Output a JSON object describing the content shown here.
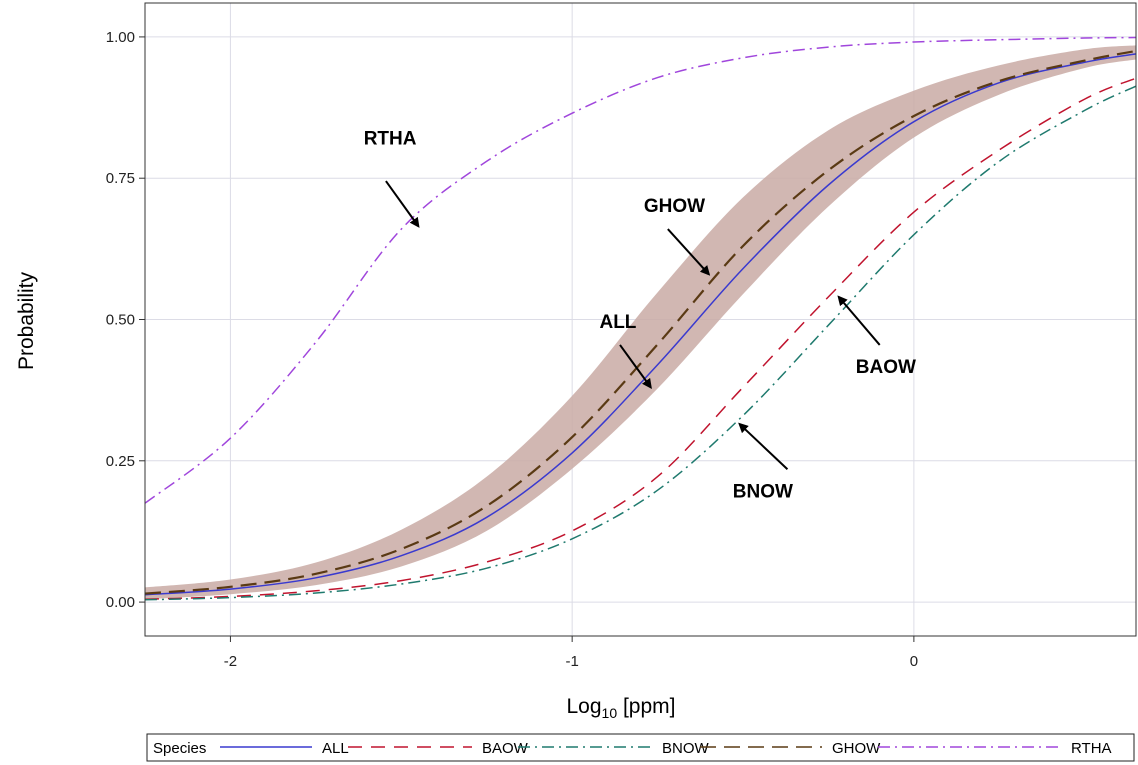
{
  "chart_data": {
    "type": "line",
    "xlabel_main": "Log",
    "xlabel_sub": "10",
    "xlabel_rest": " [ppm]",
    "ylabel": "Probability",
    "xlim": [
      -2.25,
      0.65
    ],
    "ylim": [
      -0.06,
      1.06
    ],
    "x_ticks": [
      {
        "value": -2,
        "label": "-2"
      },
      {
        "value": -1,
        "label": "-1"
      },
      {
        "value": 0,
        "label": "0"
      }
    ],
    "y_ticks": [
      {
        "value": 0,
        "label": "0.00"
      },
      {
        "value": 0.25,
        "label": "0.25"
      },
      {
        "value": 0.5,
        "label": "0.50"
      },
      {
        "value": 0.75,
        "label": "0.75"
      },
      {
        "value": 1,
        "label": "1.00"
      }
    ],
    "grid": true,
    "x": [
      -2.25,
      -2.0,
      -1.75,
      -1.5,
      -1.25,
      -1.0,
      -0.75,
      -0.5,
      -0.25,
      0.0,
      0.25,
      0.5,
      0.65
    ],
    "series": [
      {
        "name": "ALL",
        "color": "#3a3acf",
        "dash": "",
        "values": [
          0.013,
          0.023,
          0.043,
          0.082,
          0.15,
          0.264,
          0.42,
          0.59,
          0.738,
          0.85,
          0.919,
          0.955,
          0.97
        ]
      },
      {
        "name": "BAOW",
        "color": "#c0142e",
        "dash": "14,9",
        "values": [
          0.005,
          0.01,
          0.02,
          0.038,
          0.071,
          0.126,
          0.222,
          0.38,
          0.54,
          0.69,
          0.8,
          0.89,
          0.927
        ]
      },
      {
        "name": "BNOW",
        "color": "#1f7a6e",
        "dash": "12,5,2,5",
        "values": [
          0.004,
          0.008,
          0.016,
          0.032,
          0.06,
          0.112,
          0.198,
          0.33,
          0.49,
          0.65,
          0.78,
          0.87,
          0.913
        ]
      },
      {
        "name": "GHOW",
        "color": "#5a3a14",
        "dash": "16,8",
        "values": [
          0.015,
          0.027,
          0.05,
          0.094,
          0.17,
          0.292,
          0.456,
          0.63,
          0.764,
          0.86,
          0.922,
          0.958,
          0.975
        ]
      },
      {
        "name": "RTHA",
        "color": "#a046dc",
        "dash": "12,5,2,5",
        "values": [
          0.175,
          0.29,
          0.46,
          0.66,
          0.78,
          0.865,
          0.928,
          0.963,
          0.982,
          0.991,
          0.995,
          0.998,
          0.999
        ]
      }
    ],
    "band": {
      "color": "#c9aaa4",
      "lower": [
        0.005,
        0.014,
        0.03,
        0.063,
        0.126,
        0.236,
        0.378,
        0.545,
        0.7,
        0.822,
        0.898,
        0.945,
        0.96
      ],
      "upper": [
        0.026,
        0.04,
        0.07,
        0.128,
        0.222,
        0.365,
        0.548,
        0.716,
        0.835,
        0.905,
        0.95,
        0.978,
        0.985
      ]
    },
    "annotations": [
      {
        "label": "RTHA",
        "text_x": -1.61,
        "text_y": 0.81,
        "arrow_from": [
          -1.545,
          0.745
        ],
        "arrow_to": [
          -1.45,
          0.665
        ]
      },
      {
        "label": "GHOW",
        "text_x": -0.79,
        "text_y": 0.69,
        "arrow_from": [
          -0.72,
          0.66
        ],
        "arrow_to": [
          -0.6,
          0.58
        ]
      },
      {
        "label": "ALL",
        "text_x": -0.92,
        "text_y": 0.485,
        "arrow_from": [
          -0.86,
          0.455
        ],
        "arrow_to": [
          -0.77,
          0.38
        ]
      },
      {
        "label": "BAOW",
        "text_x": -0.17,
        "text_y": 0.405,
        "arrow_from": [
          -0.1,
          0.455
        ],
        "arrow_to": [
          -0.22,
          0.54
        ]
      },
      {
        "label": "BNOW",
        "text_x": -0.53,
        "text_y": 0.185,
        "arrow_from": [
          -0.37,
          0.235
        ],
        "arrow_to": [
          -0.51,
          0.315
        ]
      }
    ]
  },
  "legend": {
    "title": "Species",
    "items": [
      "ALL",
      "BAOW",
      "BNOW",
      "GHOW",
      "RTHA"
    ]
  }
}
